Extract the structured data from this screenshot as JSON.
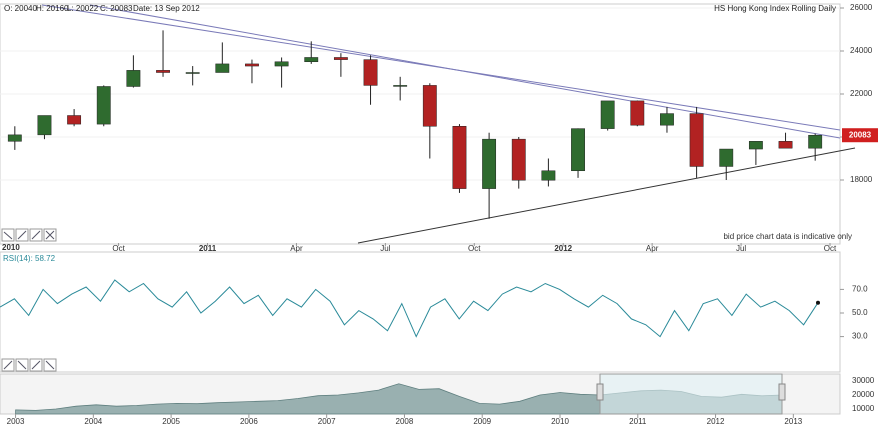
{
  "chart_data": [
    {
      "type": "candlestick",
      "title": "HS Hong Kong Index Rolling Daily",
      "header": [
        "O: 20040",
        "H: 20160",
        "L: 20022",
        "C: 20083",
        "Date: 13 Sep 2012"
      ],
      "note": "bid price chart data is indicative only",
      "x_start_label": "2010",
      "x": [
        "2010-06",
        "2010-07",
        "2010-08",
        "2010-09",
        "2010-10",
        "2010-11",
        "2010-12",
        "2011-01",
        "2011-02",
        "2011-03",
        "2011-04",
        "2011-05",
        "2011-06",
        "2011-07",
        "2011-08",
        "2011-09",
        "2011-10",
        "2011-11",
        "2011-12",
        "2012-01",
        "2012-02",
        "2012-03",
        "2012-04",
        "2012-05",
        "2012-06",
        "2012-07",
        "2012-08",
        "2012-09"
      ],
      "open": [
        19800,
        20100,
        21000,
        20600,
        22350,
        23100,
        23000,
        23000,
        23400,
        23300,
        23500,
        23700,
        23600,
        22400,
        22400,
        20500,
        17600,
        19900,
        17990,
        18430,
        20390,
        21680,
        20550,
        21090,
        18630,
        19440,
        19800,
        19480
      ],
      "high": [
        20500,
        21000,
        21300,
        22400,
        23800,
        24960,
        23300,
        24400,
        23600,
        23700,
        24450,
        23900,
        23800,
        22800,
        22500,
        20600,
        20200,
        20000,
        19000,
        20400,
        21600,
        21700,
        21400,
        21400,
        19400,
        19800,
        20200,
        20160
      ],
      "low": [
        19400,
        19900,
        20500,
        20500,
        22300,
        22800,
        22400,
        23000,
        22500,
        22300,
        23400,
        22800,
        21500,
        21700,
        19000,
        17400,
        16200,
        17600,
        17700,
        18100,
        20300,
        20500,
        20200,
        18100,
        18000,
        18700,
        19500,
        18900
      ],
      "close": [
        20100,
        21000,
        20600,
        22350,
        23100,
        23000,
        23000,
        23400,
        23300,
        23500,
        23700,
        23600,
        22400,
        22400,
        20500,
        17600,
        19900,
        17990,
        18430,
        20390,
        21680,
        20550,
        21090,
        18630,
        19440,
        19800,
        19480,
        20083
      ],
      "xlim": [
        "2010-06",
        "2012-10"
      ],
      "xticks": [
        {
          "value": "2010-10",
          "label": "Oct"
        },
        {
          "value": "2011-01",
          "label": "2011"
        },
        {
          "value": "2011-04",
          "label": "Apr"
        },
        {
          "value": "2011-07",
          "label": "Jul"
        },
        {
          "value": "2011-10",
          "label": "Oct"
        },
        {
          "value": "2012-01",
          "label": "2012"
        },
        {
          "value": "2012-04",
          "label": "Apr"
        },
        {
          "value": "2012-07",
          "label": "Jul"
        },
        {
          "value": "2012-10",
          "label": "Oct"
        }
      ],
      "ylim": [
        15070,
        26140
      ],
      "yticks": [
        18000,
        20000,
        22000,
        24000,
        26000
      ],
      "up_color": "#2f6b2f",
      "down_color": "#b22222",
      "last_price_color": "#d01f1f"
    },
    {
      "type": "line",
      "label": "RSI(14): 58.72",
      "values": [
        55,
        62,
        48,
        70,
        58,
        66,
        72,
        60,
        78,
        68,
        75,
        62,
        55,
        68,
        50,
        60,
        72,
        58,
        65,
        48,
        62,
        55,
        70,
        60,
        40,
        52,
        45,
        35,
        58,
        30,
        55,
        62,
        45,
        60,
        52,
        66,
        72,
        68,
        75,
        70,
        62,
        55,
        65,
        58,
        45,
        40,
        30,
        52,
        35,
        58,
        62,
        48,
        66,
        55,
        60,
        52,
        40,
        58.72
      ],
      "ylim": [
        0,
        100
      ],
      "yticks": [
        {
          "value": 30,
          "label": "30.0"
        },
        {
          "value": 50,
          "label": "50.0"
        },
        {
          "value": 70,
          "label": "70.0"
        }
      ],
      "color": "#2a8a99"
    },
    {
      "type": "area",
      "values": [
        9300,
        9000,
        10000,
        12000,
        13000,
        12000,
        12500,
        13500,
        14000,
        13800,
        14500,
        15000,
        15500,
        16000,
        17500,
        19500,
        20000,
        21500,
        23500,
        28000,
        24000,
        24500,
        19000,
        14000,
        13500,
        15500,
        20000,
        21800,
        20500,
        20000,
        21500,
        23000,
        23500,
        22500,
        19000,
        18400,
        20500,
        19400,
        20000
      ],
      "xlim": [
        2002.8,
        2013.6
      ],
      "xticks": [
        2003,
        2004,
        2005,
        2006,
        2007,
        2008,
        2009,
        2010,
        2011,
        2012,
        2013
      ],
      "ylim": [
        6400,
        35000
      ],
      "yticks": [
        10000,
        20000,
        30000
      ],
      "color": "#8fa8a8"
    }
  ]
}
